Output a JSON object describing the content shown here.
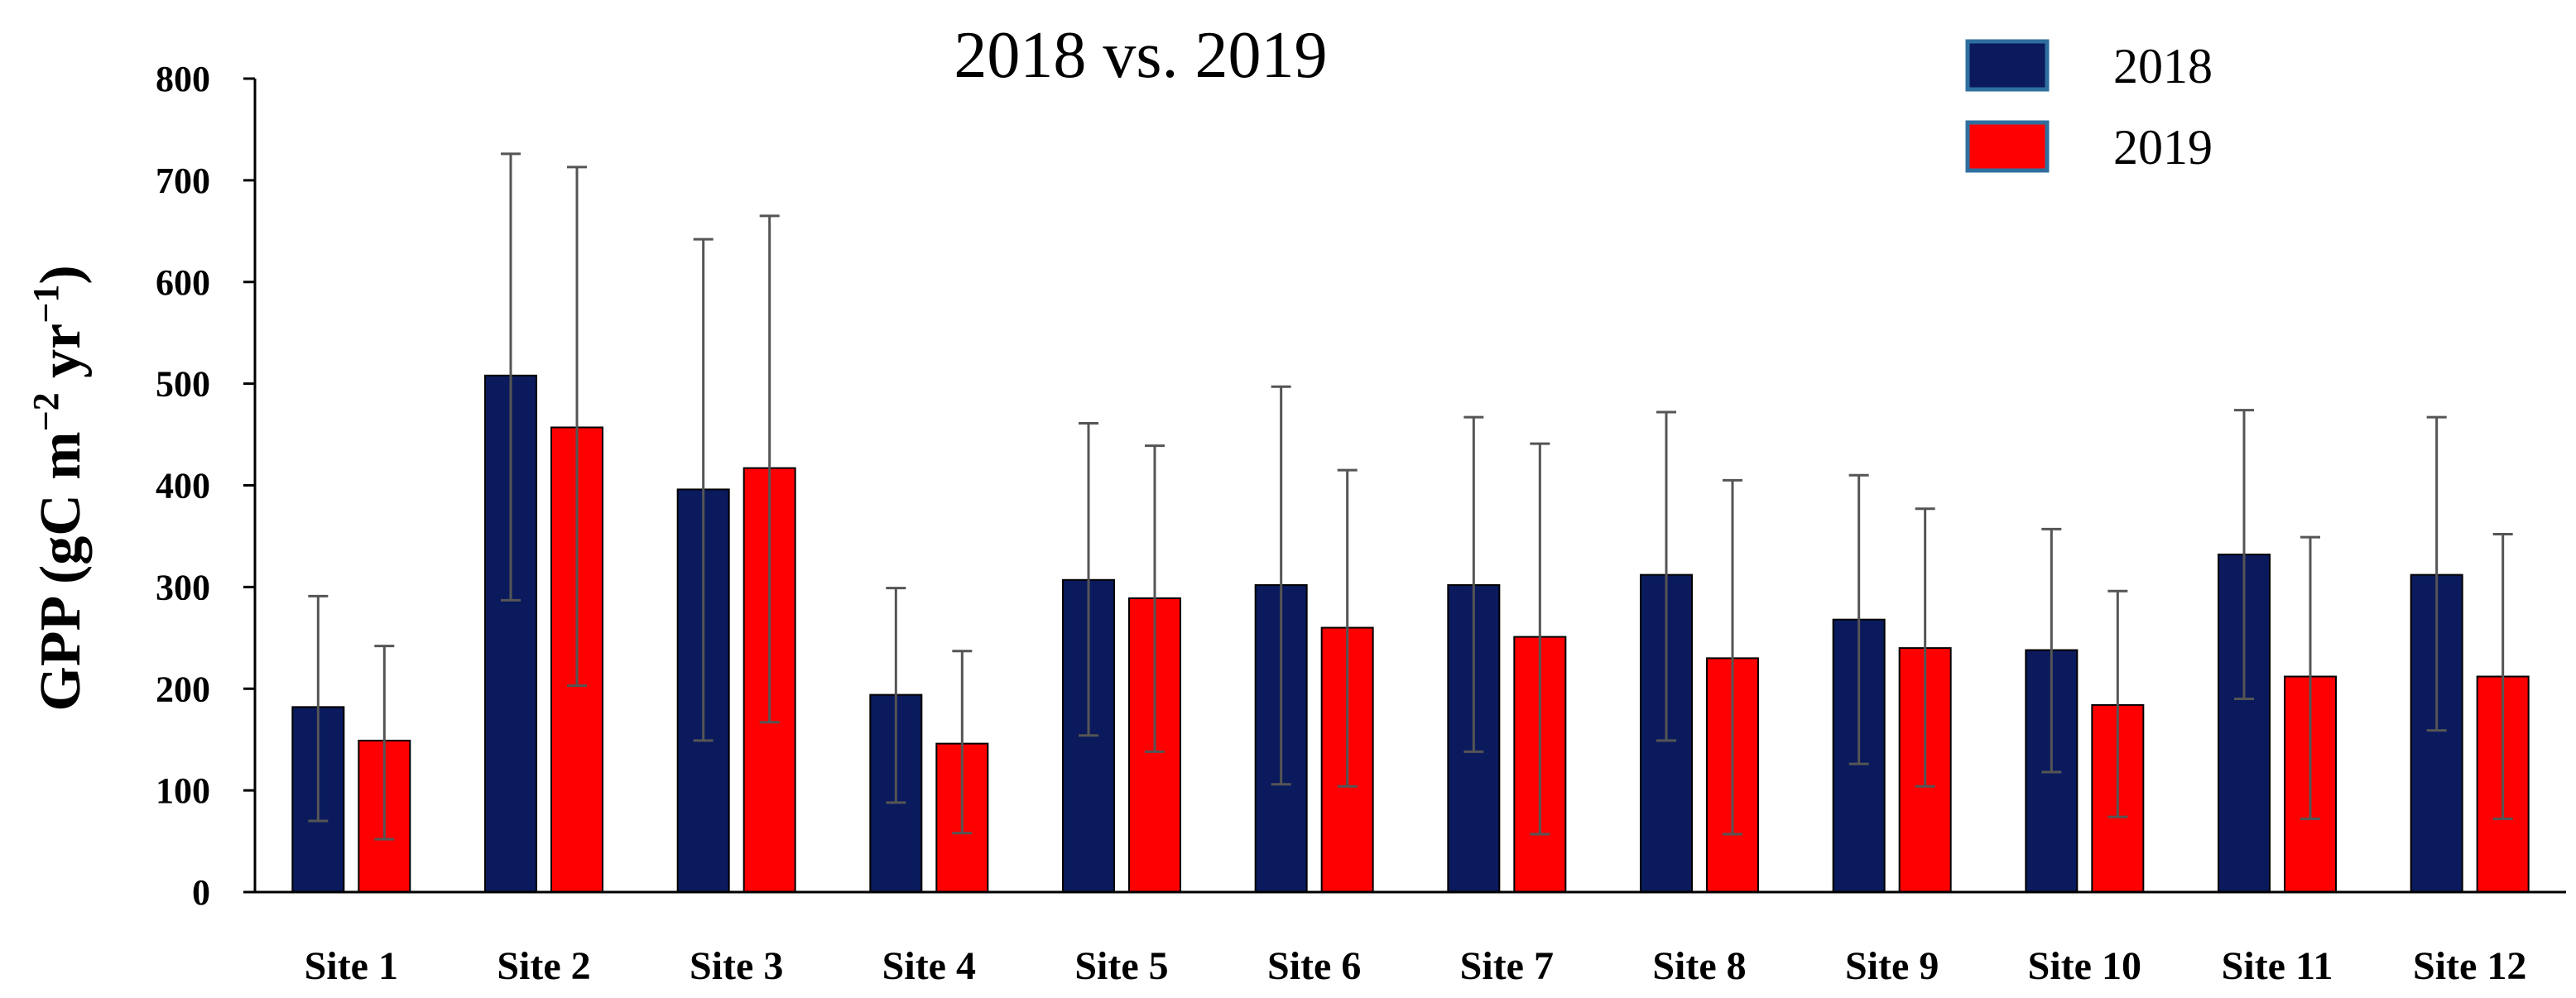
{
  "chart_data": {
    "type": "bar",
    "title": "2018 vs. 2019",
    "xlabel": "",
    "ylabel": {
      "base": "GPP (gC m",
      "exp1": "−2",
      "mid": " yr",
      "exp2": "−1",
      "end": ")"
    },
    "ylim": [
      0,
      800
    ],
    "yticks": [
      0,
      100,
      200,
      300,
      400,
      500,
      600,
      700,
      800
    ],
    "grid": false,
    "legend_position": "top-right",
    "categories": [
      "Site 1",
      "Site 2",
      "Site 3",
      "Site 4",
      "Site 5",
      "Site 6",
      "Site 7",
      "Site 8",
      "Site 9",
      "Site 10",
      "Site 11",
      "Site 12"
    ],
    "series": [
      {
        "name": "2018",
        "color": "#0a1a5c",
        "values": [
          182,
          508,
          396,
          194,
          307,
          302,
          302,
          312,
          268,
          238,
          332,
          312
        ],
        "err_low": [
          70,
          287,
          149,
          88,
          154,
          106,
          138,
          149,
          126,
          118,
          190,
          159
        ],
        "err_high": [
          291,
          726,
          642,
          299,
          461,
          497,
          467,
          472,
          410,
          357,
          474,
          467
        ]
      },
      {
        "name": "2019",
        "color": "#ff0000",
        "values": [
          149,
          457,
          417,
          146,
          289,
          260,
          251,
          230,
          240,
          184,
          212,
          212
        ],
        "err_low": [
          52,
          203,
          167,
          58,
          138,
          104,
          57,
          57,
          104,
          74,
          72,
          72
        ],
        "err_high": [
          242,
          713,
          665,
          237,
          439,
          415,
          441,
          405,
          377,
          296,
          349,
          352
        ]
      }
    ]
  }
}
